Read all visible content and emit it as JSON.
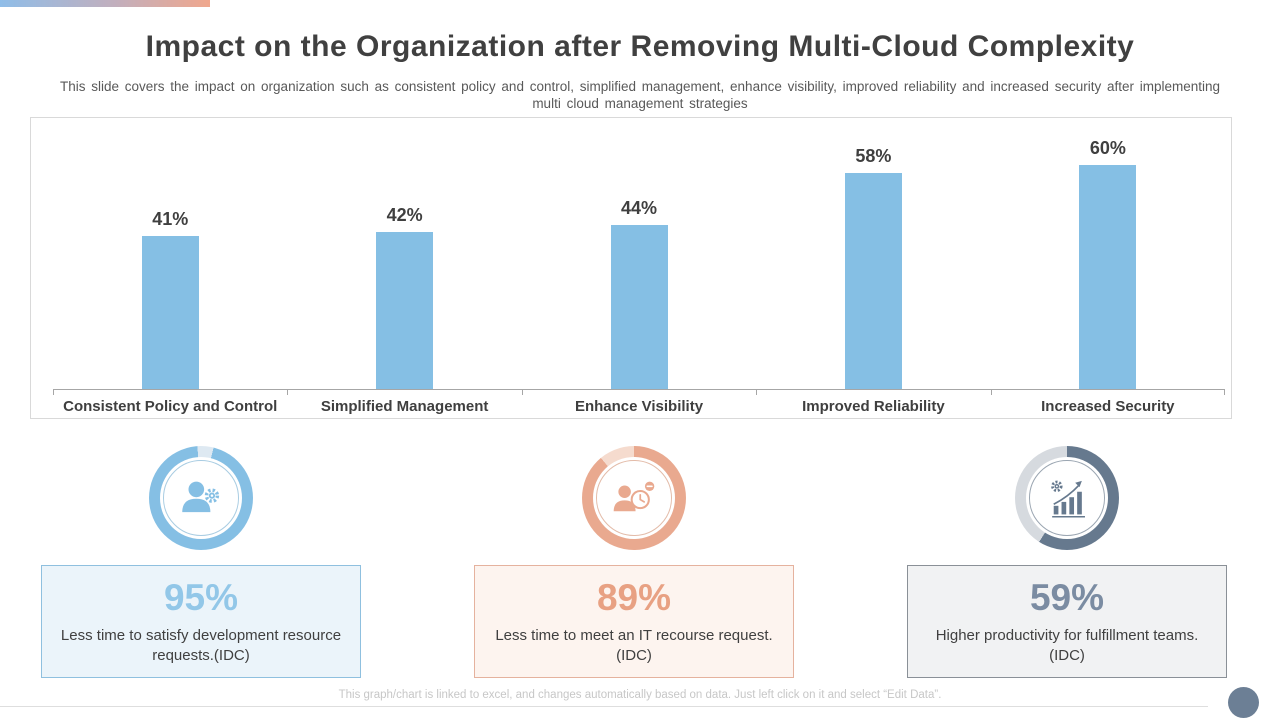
{
  "slide": {
    "title": "Impact on the Organization after Removing Multi-Cloud Complexity",
    "subtitle": "This slide covers the impact on organization such as consistent policy and control, simplified management, enhance visibility, improved reliability and increased security after implementing multi cloud management strategies",
    "footer_note": "This graph/chart is linked to excel, and changes automatically based on data. Just left click on it and select “Edit Data”.",
    "top_gradient_colors": [
      "#8FBDE8",
      "#F0A78D"
    ],
    "footer_dot_color": "#6C7F95"
  },
  "chart_data": {
    "type": "bar",
    "categories": [
      "Consistent Policy and Control",
      "Simplified Management",
      "Enhance Visibility",
      "Improved Reliability",
      "Increased Security"
    ],
    "values": [
      41,
      42,
      44,
      58,
      60
    ],
    "labels": [
      "41%",
      "42%",
      "44%",
      "58%",
      "60%"
    ],
    "unit": "%",
    "title": "",
    "xlabel": "",
    "ylabel": "",
    "ylim": [
      0,
      70
    ],
    "grid": false,
    "legend": false,
    "bar_color": "#85BFE4",
    "axis_color": "#A6A6A6",
    "value_label_color": "#3F3F3F"
  },
  "stats": [
    {
      "value": "95%",
      "description": "Less time to satisfy development resource requests.(IDC)",
      "icon": "user-gear-icon",
      "value_color": "#92C7E8",
      "box_bg": "#EBF4FA",
      "box_border": "#8FC0DF",
      "ring": {
        "percent": 95,
        "start_deg": 14,
        "fill": "#85BFE4",
        "track": "#DEE9F2",
        "inner": "#A8CCE2"
      }
    },
    {
      "value": "89%",
      "description": "Less time to meet an IT recourse request.(IDC)",
      "icon": "user-clock-icon",
      "value_color": "#E8A183",
      "box_bg": "#FDF4EF",
      "box_border": "#E5B29E",
      "ring": {
        "percent": 89,
        "start_deg": 0,
        "fill": "#E9A98F",
        "track": "#F5DBCE",
        "inner": "#E3BBA8"
      }
    },
    {
      "value": "59%",
      "description": "Higher productivity for fulfillment teams.(IDC)",
      "icon": "growth-gear-icon",
      "value_color": "#7B8CA2",
      "box_bg": "#F1F2F3",
      "box_border": "#8A9097",
      "ring": {
        "percent": 59,
        "start_deg": 0,
        "fill": "#66798E",
        "track": "#D6DADF",
        "inner": "#9AA5B1"
      }
    }
  ]
}
